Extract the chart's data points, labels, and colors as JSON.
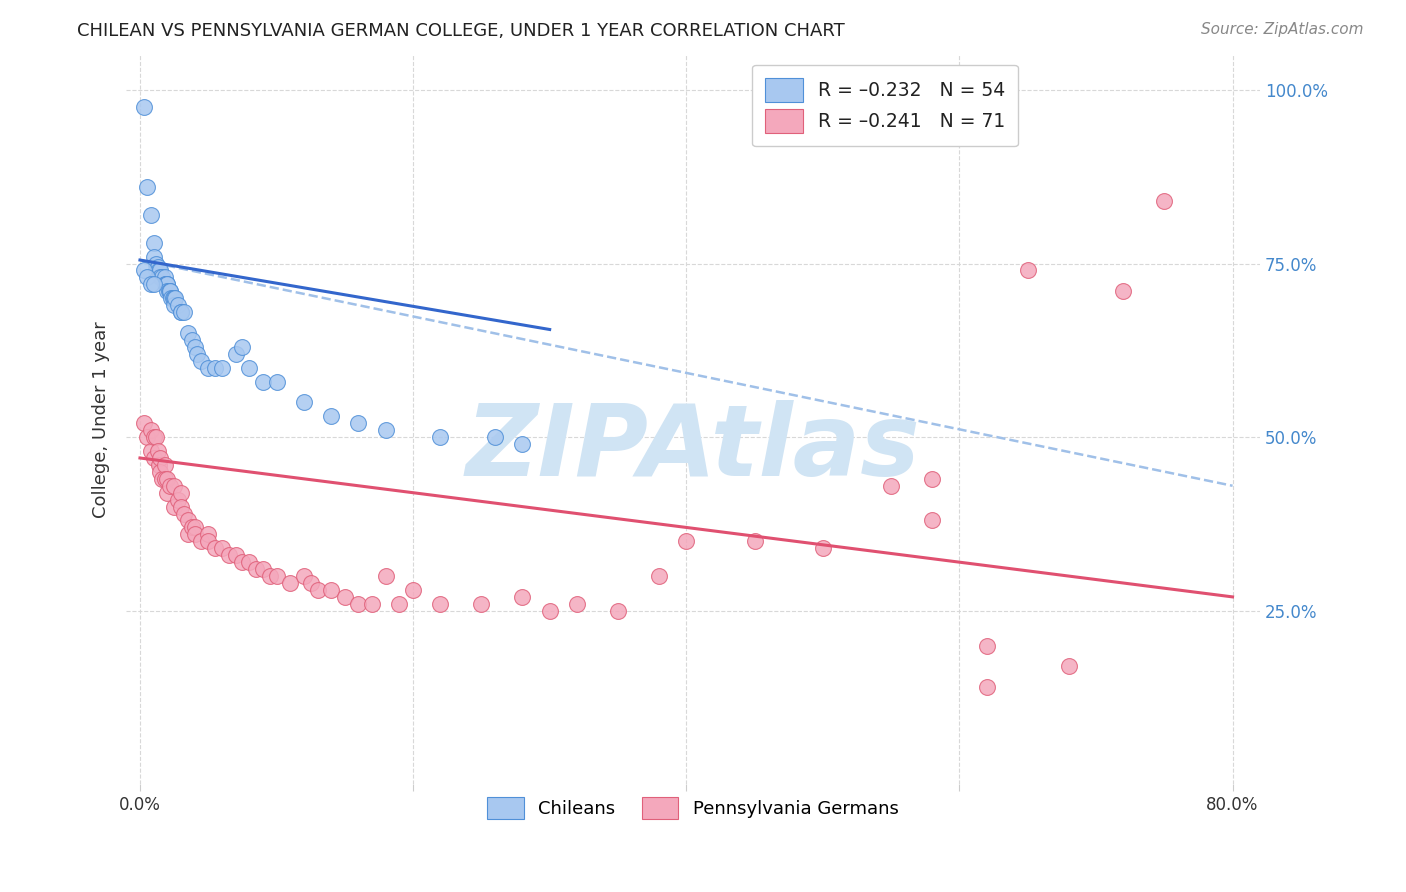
{
  "title": "CHILEAN VS PENNSYLVANIA GERMAN COLLEGE, UNDER 1 YEAR CORRELATION CHART",
  "source": "Source: ZipAtlas.com",
  "xlabel_ticks": [
    "0.0%",
    "",
    "",
    "",
    "80.0%"
  ],
  "xlabel_values": [
    0.0,
    0.2,
    0.4,
    0.6,
    0.8
  ],
  "ylabel": "College, Under 1 year",
  "right_ytick_labels": [
    "25.0%",
    "50.0%",
    "75.0%",
    "100.0%"
  ],
  "right_ytick_values": [
    0.25,
    0.5,
    0.75,
    1.0
  ],
  "xlim": [
    -0.01,
    0.82
  ],
  "ylim": [
    0.0,
    1.05
  ],
  "blue_color": "#a8c8f0",
  "pink_color": "#f4a8bc",
  "blue_edge_color": "#5090d8",
  "pink_edge_color": "#e0607a",
  "blue_line_color": "#3366cc",
  "pink_line_color": "#e05070",
  "dashed_line_color": "#a0c0e8",
  "legend_label_blue": "Chileans",
  "legend_label_pink": "Pennsylvania Germans",
  "watermark": "ZIPAtlas",
  "watermark_color": "#d0e4f4",
  "background_color": "#ffffff",
  "grid_color": "#d8d8d8",
  "blue_x": [
    0.003,
    0.005,
    0.008,
    0.01,
    0.01,
    0.012,
    0.012,
    0.013,
    0.014,
    0.015,
    0.015,
    0.016,
    0.018,
    0.018,
    0.019,
    0.02,
    0.02,
    0.02,
    0.021,
    0.022,
    0.022,
    0.023,
    0.024,
    0.025,
    0.025,
    0.026,
    0.028,
    0.03,
    0.03,
    0.032,
    0.035,
    0.038,
    0.04,
    0.042,
    0.045,
    0.05,
    0.055,
    0.06,
    0.07,
    0.075,
    0.08,
    0.09,
    0.1,
    0.12,
    0.14,
    0.16,
    0.18,
    0.22,
    0.26,
    0.28,
    0.003,
    0.005,
    0.008,
    0.01
  ],
  "blue_y": [
    0.975,
    0.86,
    0.82,
    0.78,
    0.76,
    0.75,
    0.74,
    0.745,
    0.74,
    0.74,
    0.73,
    0.73,
    0.73,
    0.72,
    0.72,
    0.72,
    0.72,
    0.71,
    0.71,
    0.71,
    0.71,
    0.7,
    0.7,
    0.7,
    0.69,
    0.7,
    0.69,
    0.68,
    0.68,
    0.68,
    0.65,
    0.64,
    0.63,
    0.62,
    0.61,
    0.6,
    0.6,
    0.6,
    0.62,
    0.63,
    0.6,
    0.58,
    0.58,
    0.55,
    0.53,
    0.52,
    0.51,
    0.5,
    0.5,
    0.49,
    0.74,
    0.73,
    0.72,
    0.72
  ],
  "pink_x": [
    0.003,
    0.005,
    0.008,
    0.008,
    0.01,
    0.01,
    0.012,
    0.013,
    0.014,
    0.015,
    0.015,
    0.016,
    0.018,
    0.018,
    0.02,
    0.02,
    0.022,
    0.025,
    0.025,
    0.028,
    0.03,
    0.03,
    0.032,
    0.035,
    0.035,
    0.038,
    0.04,
    0.04,
    0.045,
    0.05,
    0.05,
    0.055,
    0.06,
    0.065,
    0.07,
    0.075,
    0.08,
    0.085,
    0.09,
    0.095,
    0.1,
    0.11,
    0.12,
    0.125,
    0.13,
    0.14,
    0.15,
    0.16,
    0.17,
    0.18,
    0.19,
    0.2,
    0.22,
    0.25,
    0.28,
    0.3,
    0.32,
    0.35,
    0.38,
    0.4,
    0.45,
    0.5,
    0.55,
    0.58,
    0.62,
    0.65,
    0.68,
    0.72,
    0.75,
    0.58,
    0.62
  ],
  "pink_y": [
    0.52,
    0.5,
    0.51,
    0.48,
    0.5,
    0.47,
    0.5,
    0.48,
    0.46,
    0.47,
    0.45,
    0.44,
    0.46,
    0.44,
    0.44,
    0.42,
    0.43,
    0.43,
    0.4,
    0.41,
    0.42,
    0.4,
    0.39,
    0.38,
    0.36,
    0.37,
    0.37,
    0.36,
    0.35,
    0.36,
    0.35,
    0.34,
    0.34,
    0.33,
    0.33,
    0.32,
    0.32,
    0.31,
    0.31,
    0.3,
    0.3,
    0.29,
    0.3,
    0.29,
    0.28,
    0.28,
    0.27,
    0.26,
    0.26,
    0.3,
    0.26,
    0.28,
    0.26,
    0.26,
    0.27,
    0.25,
    0.26,
    0.25,
    0.3,
    0.35,
    0.35,
    0.34,
    0.43,
    0.38,
    0.2,
    0.74,
    0.17,
    0.71,
    0.84,
    0.44,
    0.14
  ],
  "blue_trend_x0": 0.0,
  "blue_trend_y0": 0.755,
  "blue_trend_x1": 0.3,
  "blue_trend_y1": 0.655,
  "pink_trend_x0": 0.0,
  "pink_trend_y0": 0.47,
  "pink_trend_x1": 0.8,
  "pink_trend_y1": 0.27,
  "dash_trend_x0": 0.0,
  "dash_trend_y0": 0.755,
  "dash_trend_x1": 0.8,
  "dash_trend_y1": 0.43
}
